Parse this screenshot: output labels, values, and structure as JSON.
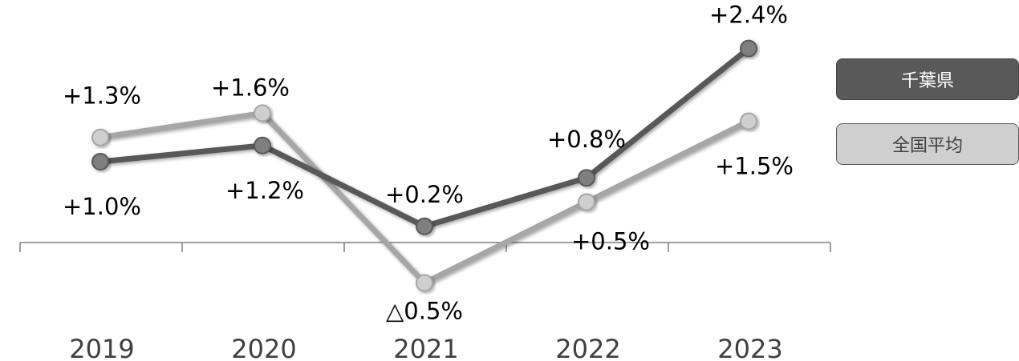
{
  "chart_data": {
    "type": "line",
    "categories": [
      "2019",
      "2020",
      "2021",
      "2022",
      "2023"
    ],
    "series": [
      {
        "name": "千葉県",
        "values": [
          1.0,
          1.2,
          0.2,
          0.8,
          2.4
        ],
        "labels": [
          "+1.0%",
          "+1.2%",
          "+0.2%",
          "+0.8%",
          "+2.4%"
        ],
        "color": "#595959",
        "marker_color": "#7f7f7f"
      },
      {
        "name": "全国平均",
        "values": [
          1.3,
          1.6,
          -0.5,
          0.5,
          1.5
        ],
        "labels": [
          "+1.3%",
          "+1.6%",
          "△0.5%",
          "+0.5%",
          "+1.5%"
        ],
        "color": "#a6a6a6",
        "marker_color": "#cfcfcf"
      }
    ],
    "ylim": [
      -0.5,
      2.4
    ],
    "grid": false,
    "legend": "right",
    "axis_color": "#7f7f7f"
  }
}
